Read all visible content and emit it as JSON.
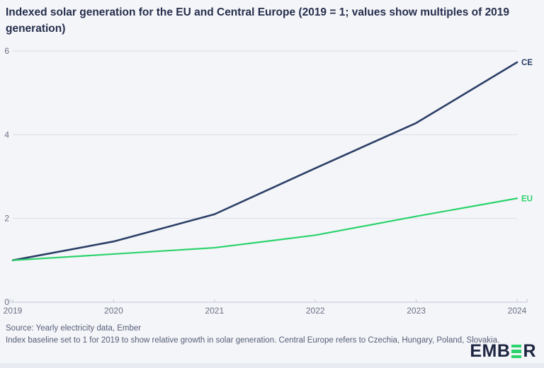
{
  "title": "Indexed solar generation for the EU and Central Europe (2019 = 1; values show multiples of 2019 generation)",
  "footer": {
    "source_line": "Source: Yearly electricity data, Ember",
    "note_line": "Index baseline set to 1 for 2019 to show relative growth in solar generation. Central Europe refers to Czechia, Hungary, Poland, Slovakia."
  },
  "logo": {
    "name": "EMBER",
    "text_start": "EMB",
    "text_end": "R"
  },
  "colors": {
    "background": "#f4f5f9",
    "ce": "#2b3f66",
    "eu": "#2bd36c",
    "grid": "#d9dde6",
    "axis": "#c2c8d5",
    "tick_label": "#6a7184",
    "title_text": "#252e4c",
    "footer_text": "#565e76",
    "logo_text": "#1d2440",
    "logo_green": "#2bd36c",
    "bottom_strip": "#e9ebf2"
  },
  "chart_data": {
    "type": "line",
    "title": "Indexed solar generation for the EU and Central Europe (2019 = 1; values show multiples of 2019 generation)",
    "x": [
      2019,
      2020,
      2021,
      2022,
      2023,
      2024
    ],
    "series": [
      {
        "name": "CE",
        "color_key": "ce",
        "values": [
          1.0,
          1.45,
          2.1,
          3.2,
          4.28,
          5.73
        ]
      },
      {
        "name": "EU",
        "color_key": "eu",
        "values": [
          1.0,
          1.15,
          1.3,
          1.6,
          2.05,
          2.48
        ]
      }
    ],
    "xlabel": "",
    "ylabel": "",
    "ylim": [
      0,
      6
    ],
    "yticks": [
      0,
      2,
      4,
      6
    ],
    "grid": "horizontal",
    "legend_position": "labels at line ends (right side)"
  }
}
